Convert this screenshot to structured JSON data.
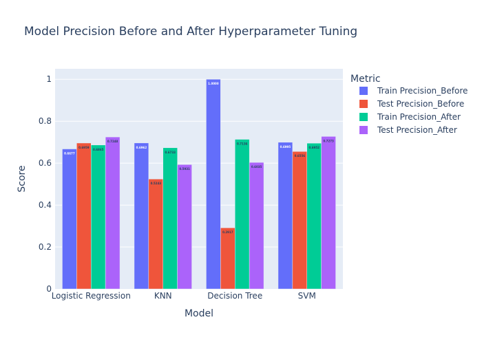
{
  "chart_data": {
    "type": "bar",
    "title": "Model Precision Before and After Hyperparameter Tuning",
    "xlabel": "Model",
    "ylabel": "Score",
    "ylim": [
      0,
      1.05
    ],
    "y_ticks": [
      "0",
      "0.2",
      "0.4",
      "0.6",
      "0.8",
      "1"
    ],
    "grid": true,
    "legend_title": "Metric",
    "legend_position": "right",
    "categories": [
      "Logistic Regression",
      "KNN",
      "Decision Tree",
      "SVM"
    ],
    "series": [
      {
        "name": "Train Precision_Before",
        "color": "#636efa",
        "label_color": "#ffffff",
        "values": [
          0.6677,
          0.6962,
          1.0,
          0.6995
        ],
        "labels": [
          "0.6677",
          "0.6962",
          "1.0000",
          "0.6995"
        ]
      },
      {
        "name": "Test Precision_Before",
        "color": "#ef553b",
        "label_color": "#2a3f5f",
        "values": [
          0.6959,
          0.5243,
          0.2917,
          0.6556
        ],
        "labels": [
          "0.6959",
          "0.5243",
          "0.2917",
          "0.6556"
        ]
      },
      {
        "name": "Train Precision_After",
        "color": "#00cc96",
        "label_color": "#2a3f5f",
        "values": [
          0.6865,
          0.6733,
          0.7136,
          0.6952
        ],
        "labels": [
          "0.6865",
          "0.6733",
          "0.7136",
          "0.6952"
        ]
      },
      {
        "name": "Test Precision_After",
        "color": "#ab63fa",
        "label_color": "#2a3f5f",
        "values": [
          0.7248,
          0.5931,
          0.6035,
          0.7273
        ],
        "labels": [
          "0.7248",
          "0.5931",
          "0.6035",
          "0.7273"
        ]
      }
    ]
  }
}
